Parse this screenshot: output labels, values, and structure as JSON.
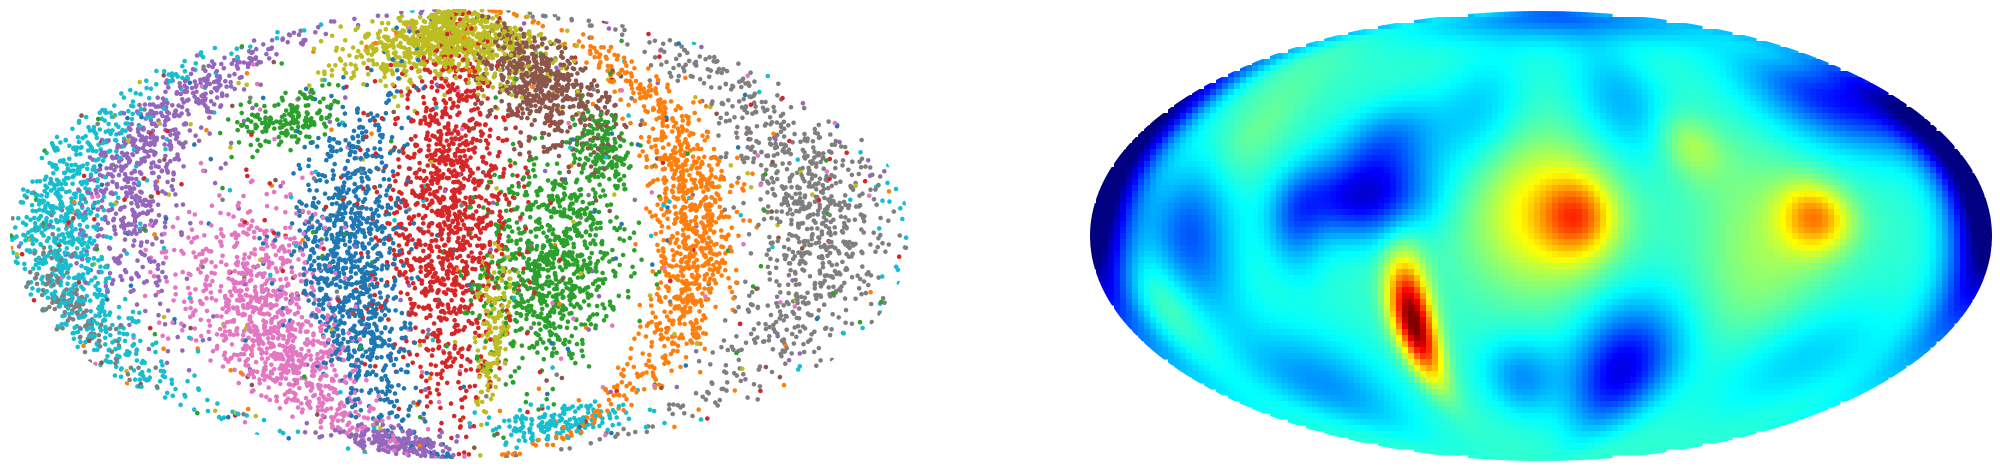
{
  "chart_data": [
    {
      "type": "scatter",
      "projection": "mollweide",
      "title": "",
      "xlabel": "",
      "ylabel": "",
      "xlim": [
        -180,
        180
      ],
      "ylim": [
        -90,
        90
      ],
      "grid": false,
      "legend": "none",
      "series": [
        {
          "color": "#2ca02c",
          "clusters": [
            {
              "lon": 62,
              "lat": 28,
              "rlon": 13,
              "rlat": 14,
              "n": 160
            },
            {
              "lon": -80,
              "lat": 38,
              "rlon": 20,
              "rlat": 10,
              "n": 170
            },
            {
              "lon": 38,
              "lat": -10,
              "rlon": 26,
              "rlat": 30,
              "n": 820
            }
          ]
        },
        {
          "color": "#ff7f0e",
          "clusters": [
            {
              "lon": 95,
              "lat": 5,
              "rlon": 15,
              "rlat": 62,
              "n": 950
            }
          ]
        },
        {
          "color": "#d62728",
          "clusters": [
            {
              "lon": -5,
              "lat": 5,
              "rlon": 25,
              "rlat": 52,
              "n": 1200
            }
          ]
        },
        {
          "color": "#8c564b",
          "clusters": [
            {
              "lon": 45,
              "lat": 50,
              "rlon": 27,
              "rlat": 22,
              "n": 620
            }
          ]
        },
        {
          "color": "#1f77b4",
          "clusters": [
            {
              "lon": -45,
              "lat": -10,
              "rlon": 20,
              "rlat": 50,
              "n": 1000
            }
          ]
        },
        {
          "color": "#e377c2",
          "clusters": [
            {
              "lon": -85,
              "lat": -30,
              "rlon": 30,
              "rlat": 38,
              "n": 1000
            }
          ]
        },
        {
          "color": "#9467bd",
          "clusters": [
            {
              "lon": -135,
              "lat": 25,
              "rlon": 20,
              "rlat": 45,
              "n": 650
            },
            {
              "lon": -70,
              "lat": -78,
              "rlon": 50,
              "rlat": 8,
              "n": 200
            }
          ]
        },
        {
          "color": "#17becf",
          "clusters": [
            {
              "lon": -160,
              "lat": 0,
              "rlon": 18,
              "rlat": 52,
              "n": 850
            },
            {
              "lon": 75,
              "lat": -68,
              "rlon": 45,
              "rlat": 8,
              "n": 170
            }
          ]
        },
        {
          "color": "#bcbd22",
          "clusters": [
            {
              "lon": -10,
              "lat": 68,
              "rlon": 65,
              "rlat": 16,
              "n": 850
            },
            {
              "lon": 15,
              "lat": -30,
              "rlon": 7,
              "rlat": 26,
              "n": 160
            }
          ]
        },
        {
          "color": "#7f7f7f",
          "clusters": [
            {
              "lon": 145,
              "lat": 5,
              "rlon": 25,
              "rlat": 60,
              "n": 850
            },
            {
              "lon": -165,
              "lat": -22,
              "rlon": 10,
              "rlat": 22,
              "n": 120
            }
          ]
        }
      ]
    },
    {
      "type": "heatmap",
      "projection": "mollweide",
      "title": "",
      "colormap": "jet",
      "colorbar": false,
      "grid": false,
      "value_range": [
        0,
        1
      ],
      "baseline": 0.42,
      "blobs": [
        {
          "lon": -55,
          "lat": -28,
          "slon": 6,
          "slat": 14,
          "amp": 0.6
        },
        {
          "lon": -72,
          "lat": 12,
          "slon": 18,
          "slat": 9,
          "amp": -0.3
        },
        {
          "lon": -68,
          "lat": 30,
          "slon": 14,
          "slat": 10,
          "amp": -0.18
        },
        {
          "lon": -98,
          "lat": 5,
          "slon": 8,
          "slat": 12,
          "amp": -0.15
        },
        {
          "lon": 0,
          "lat": 8,
          "slon": 20,
          "slat": 18,
          "amp": 0.22
        },
        {
          "lon": 15,
          "lat": 6,
          "slon": 10,
          "slat": 9,
          "amp": 0.25
        },
        {
          "lon": 110,
          "lat": 6,
          "slon": 10,
          "slat": 8,
          "amp": 0.3
        },
        {
          "lon": 65,
          "lat": 30,
          "slon": 9,
          "slat": 8,
          "amp": 0.12
        },
        {
          "lon": 85,
          "lat": 0,
          "slon": 16,
          "slat": 22,
          "amp": 0.08
        },
        {
          "lon": -130,
          "lat": 30,
          "slon": 10,
          "slat": 14,
          "amp": 0.08
        },
        {
          "lon": -160,
          "lat": -20,
          "slon": 12,
          "slat": 12,
          "amp": 0.1
        },
        {
          "lon": -140,
          "lat": 0,
          "slon": 12,
          "slat": 18,
          "amp": -0.22
        },
        {
          "lon": -175,
          "lat": 10,
          "slon": 10,
          "slat": 30,
          "amp": -0.3
        },
        {
          "lon": 175,
          "lat": 10,
          "slon": 10,
          "slat": 30,
          "amp": -0.3
        },
        {
          "lon": 150,
          "lat": 45,
          "slon": 25,
          "slat": 12,
          "amp": -0.28
        },
        {
          "lon": 30,
          "lat": 85,
          "slon": 90,
          "slat": 10,
          "amp": -0.2
        },
        {
          "lon": 40,
          "lat": -45,
          "slon": 16,
          "slat": 16,
          "amp": -0.32
        },
        {
          "lon": -10,
          "lat": -48,
          "slon": 12,
          "slat": 10,
          "amp": -0.15
        },
        {
          "lon": -115,
          "lat": -50,
          "slon": 22,
          "slat": 14,
          "amp": -0.15
        },
        {
          "lon": 120,
          "lat": -40,
          "slon": 25,
          "slat": 14,
          "amp": -0.1
        },
        {
          "lon": 100,
          "lat": -20,
          "slon": 18,
          "slat": 20,
          "amp": 0.05
        },
        {
          "lon": 40,
          "lat": 45,
          "slon": 15,
          "slat": 15,
          "amp": -0.12
        },
        {
          "lon": -30,
          "lat": 40,
          "slon": 15,
          "slat": 15,
          "amp": -0.1
        },
        {
          "lon": -160,
          "lat": 55,
          "slon": 20,
          "slat": 12,
          "amp": 0.05
        }
      ]
    }
  ]
}
